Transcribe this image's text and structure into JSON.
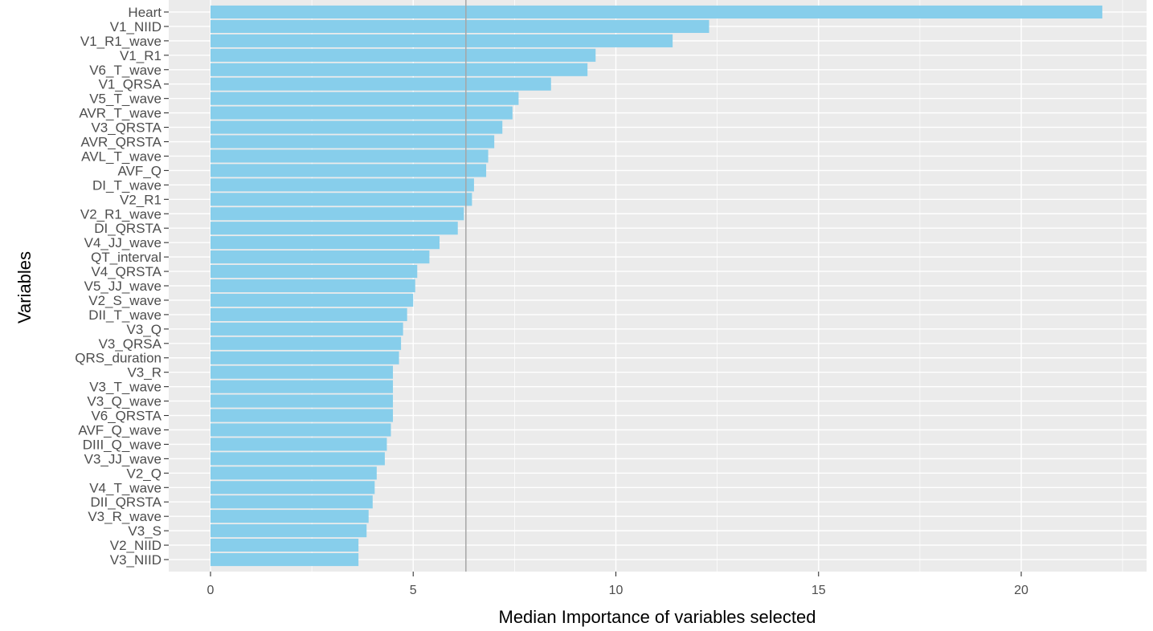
{
  "chart_data": {
    "type": "bar",
    "orientation": "horizontal",
    "xlabel": "Median Importance of variables selected",
    "ylabel": "Variables",
    "xlim": [
      -0.8,
      22.6
    ],
    "xticks": [
      0,
      5,
      10,
      15,
      20
    ],
    "grid": true,
    "bar_color": "#87ceeb",
    "panel_color": "#ebebeb",
    "reference_line": {
      "x": 6.3,
      "color": "#a6a6a6"
    },
    "categories": [
      "Heart",
      "V1_NIID",
      "V1_R1_wave",
      "V1_R1",
      "V6_T_wave",
      "V1_QRSA",
      "V5_T_wave",
      "AVR_T_wave",
      "V3_QRSTA",
      "AVR_QRSTA",
      "AVL_T_wave",
      "AVF_Q",
      "DI_T_wave",
      "V2_R1",
      "V2_R1_wave",
      "DI_QRSTA",
      "V4_JJ_wave",
      "QT_interval",
      "V4_QRSTA",
      "V5_JJ_wave",
      "V2_S_wave",
      "DII_T_wave",
      "V3_Q",
      "V3_QRSA",
      "QRS_duration",
      "V3_R",
      "V3_T_wave",
      "V3_Q_wave",
      "V6_QRSTA",
      "AVF_Q_wave",
      "DIII_Q_wave",
      "V3_JJ_wave",
      "V2_Q",
      "V4_T_wave",
      "DII_QRSTA",
      "V3_R_wave",
      "V3_S",
      "V2_NIID",
      "V3_NIID"
    ],
    "values": [
      22.0,
      12.3,
      11.4,
      9.5,
      9.3,
      8.4,
      7.6,
      7.45,
      7.2,
      7.0,
      6.85,
      6.8,
      6.5,
      6.45,
      6.25,
      6.1,
      5.65,
      5.4,
      5.1,
      5.05,
      5.0,
      4.85,
      4.75,
      4.7,
      4.65,
      4.5,
      4.5,
      4.5,
      4.5,
      4.45,
      4.35,
      4.3,
      4.1,
      4.05,
      4.0,
      3.9,
      3.85,
      3.65,
      3.65
    ]
  }
}
